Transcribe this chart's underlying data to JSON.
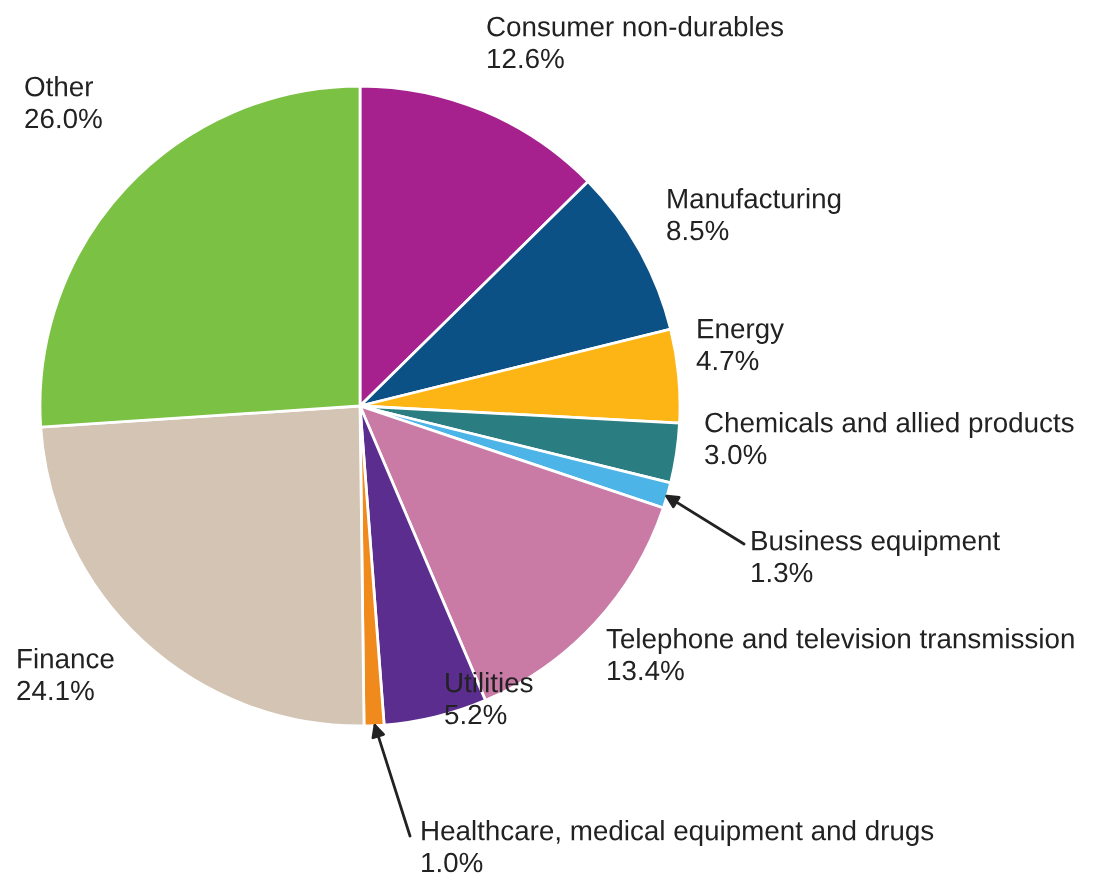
{
  "chart_data": {
    "type": "pie",
    "categories": [
      "Consumer non-durables",
      "Manufacturing",
      "Energy",
      "Chemicals and allied products",
      "Business equipment",
      "Telephone and television transmission",
      "Utilities",
      "Healthcare, medical equipment and drugs",
      "Finance",
      "Other"
    ],
    "values": [
      12.6,
      8.5,
      4.7,
      3.0,
      1.3,
      13.4,
      5.2,
      1.0,
      24.1,
      26.0
    ],
    "value_labels": [
      "12.6%",
      "8.5%",
      "4.7%",
      "3.0%",
      "1.3%",
      "13.4%",
      "5.2%",
      "1.0%",
      "24.1%",
      "26.0%"
    ],
    "colors": [
      "#a6218e",
      "#0b5185",
      "#fdb515",
      "#2a7d80",
      "#4cb4e7",
      "#c97ba6",
      "#5b2d8e",
      "#f08a1d",
      "#d3c4b4",
      "#7bc143"
    ]
  }
}
